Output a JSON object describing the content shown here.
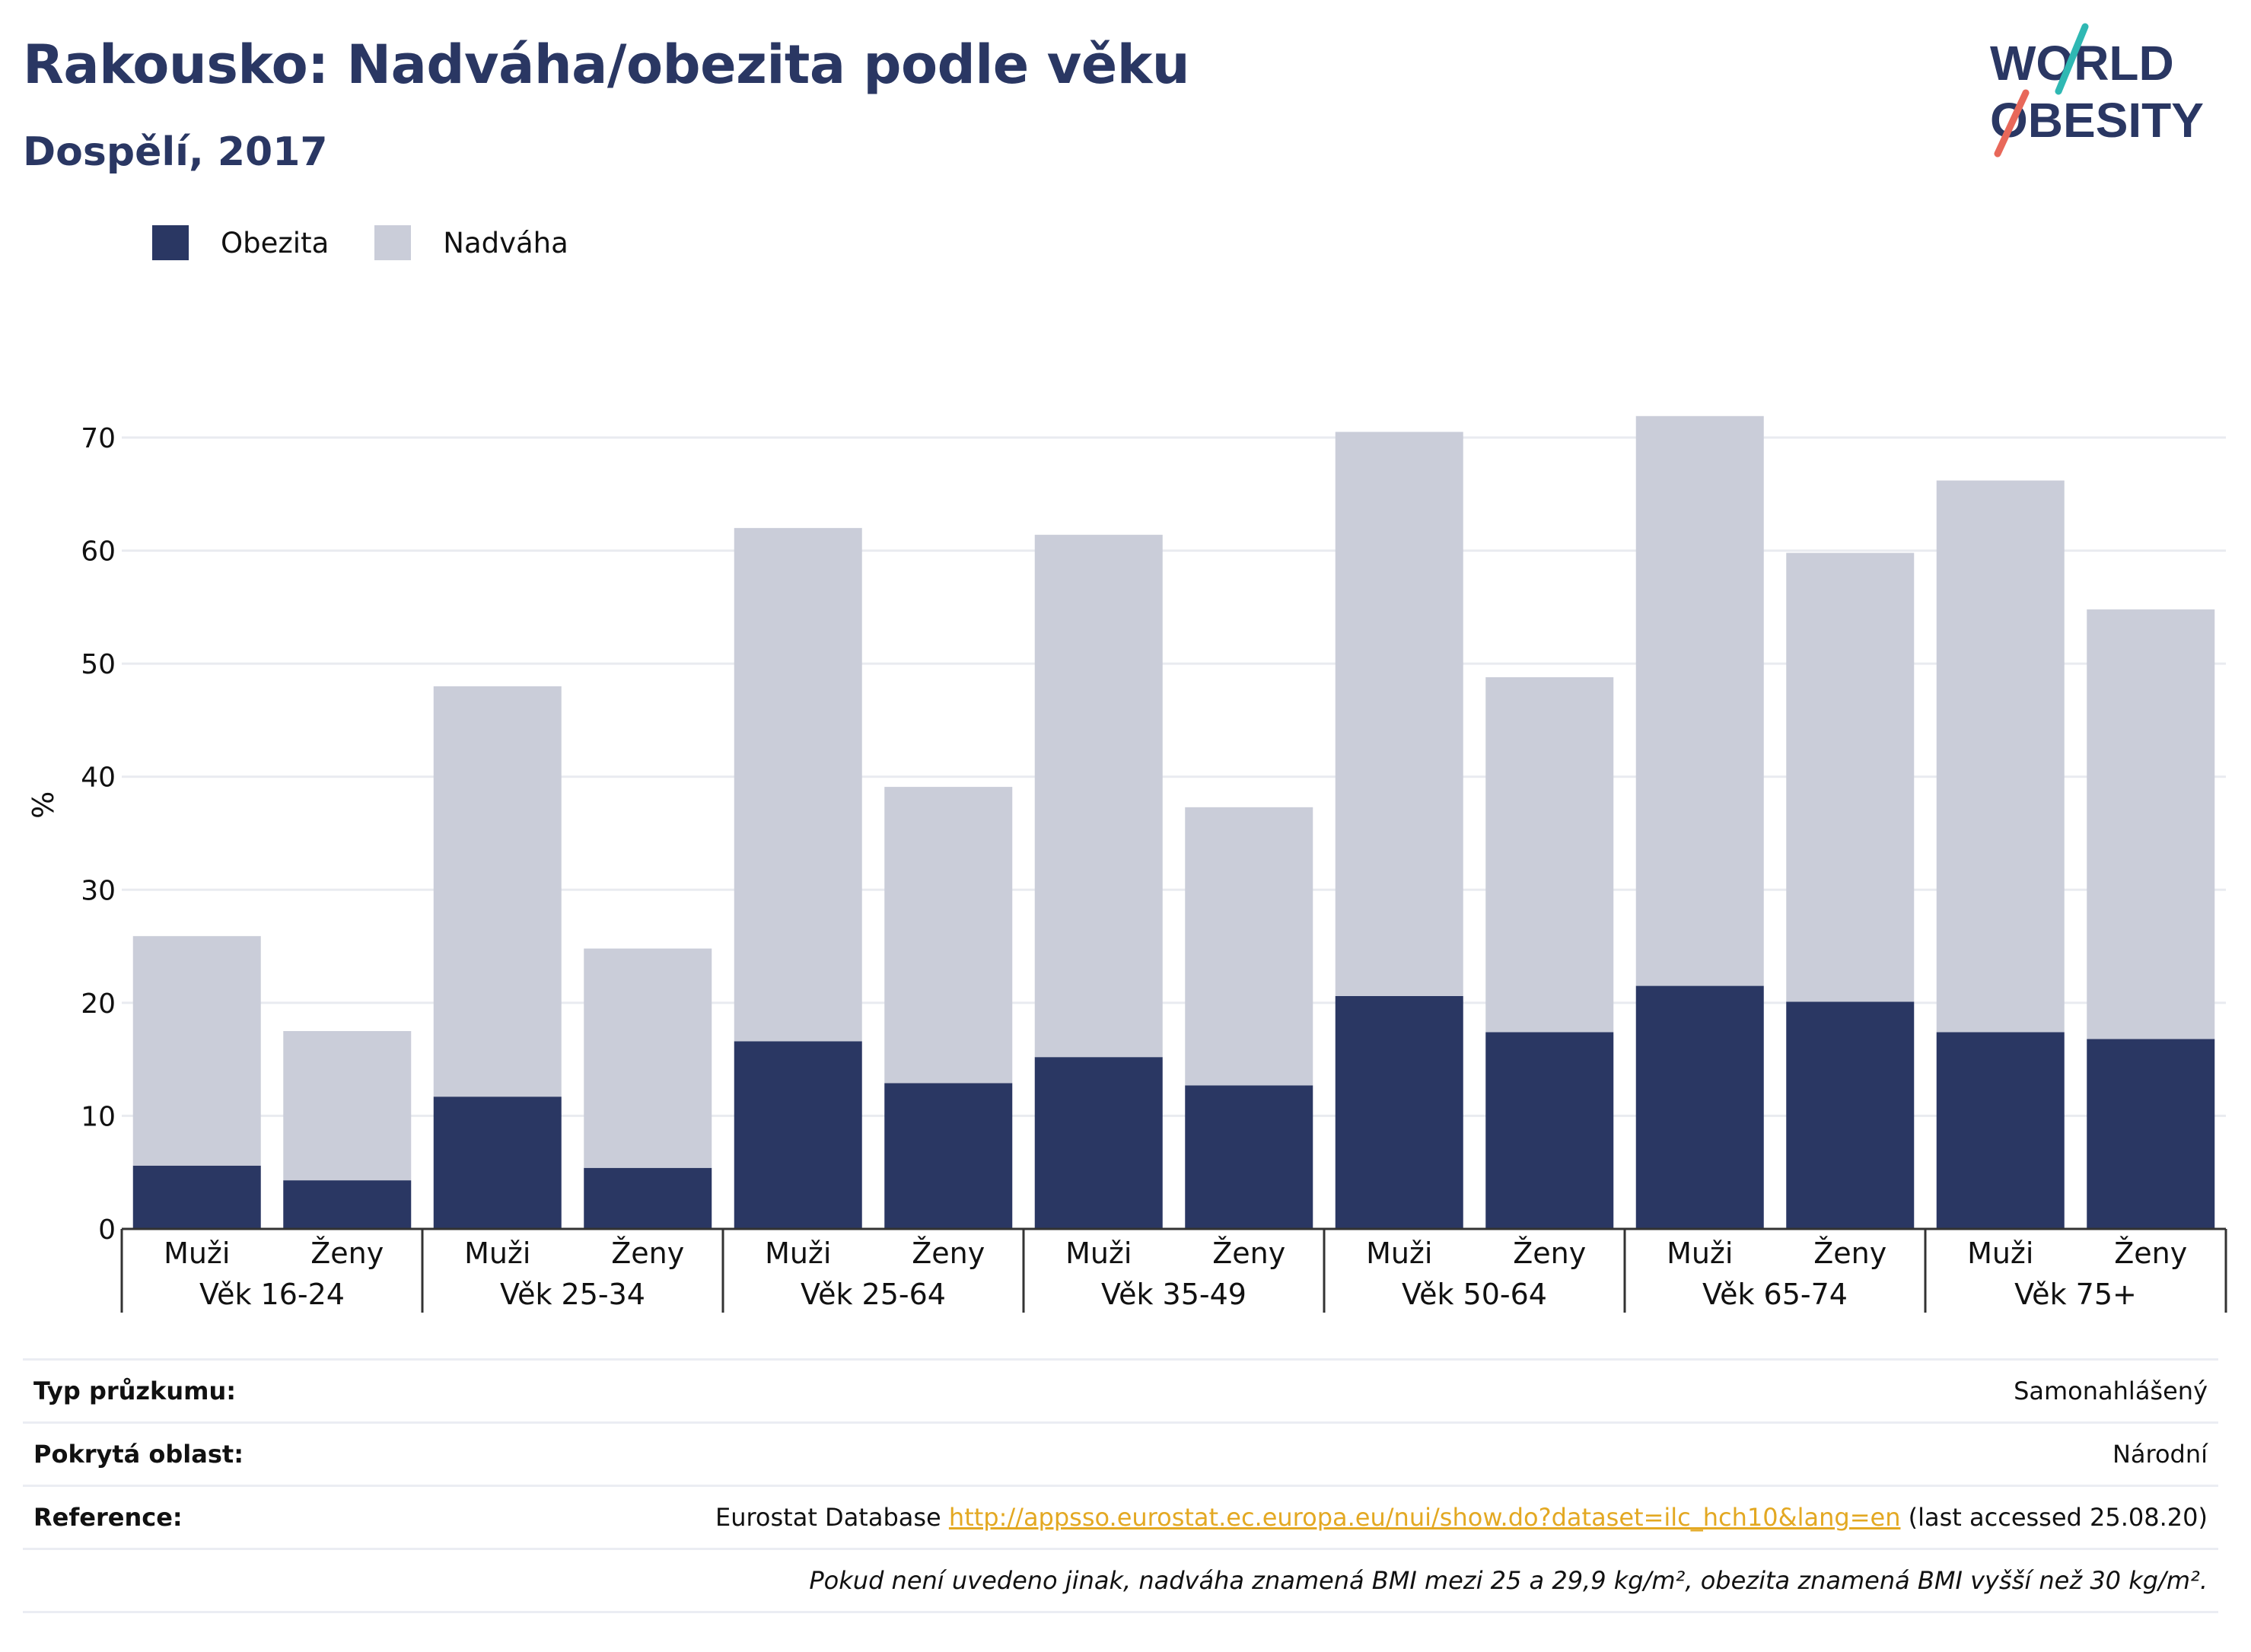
{
  "title": "Rakousko: Nadváha/obezita podle věku",
  "subtitle": "Dospělí, 2017",
  "logo": {
    "line1": "WORLD",
    "line2": "OBESITY"
  },
  "legend": [
    {
      "label": "Obezita",
      "color": "#2a3763"
    },
    {
      "label": "Nadváha",
      "color": "#cacdd9"
    }
  ],
  "chart_data": {
    "type": "bar",
    "stacked": true,
    "ylabel": "%",
    "ylim": [
      0,
      75
    ],
    "yticks": [
      0,
      10,
      20,
      30,
      40,
      50,
      60,
      70
    ],
    "grid": true,
    "legend_position": "top-left",
    "groups": [
      "Věk 16-24",
      "Věk 25-34",
      "Věk 25-64",
      "Věk 35-49",
      "Věk 50-64",
      "Věk 65-74",
      "Věk 75+"
    ],
    "subcategories": [
      "Muži",
      "Ženy"
    ],
    "categories": [
      "Věk 16-24 Muži",
      "Věk 16-24 Ženy",
      "Věk 25-34 Muži",
      "Věk 25-34 Ženy",
      "Věk 25-64 Muži",
      "Věk 25-64 Ženy",
      "Věk 35-49 Muži",
      "Věk 35-49 Ženy",
      "Věk 50-64 Muži",
      "Věk 50-64 Ženy",
      "Věk 65-74 Muži",
      "Věk 65-74 Ženy",
      "Věk 75+ Muži",
      "Věk 75+ Ženy"
    ],
    "series": [
      {
        "name": "Obezita",
        "color": "#2a3763",
        "values": [
          5.6,
          4.3,
          11.7,
          5.4,
          16.6,
          12.9,
          15.2,
          12.7,
          20.6,
          17.4,
          21.5,
          20.1,
          17.4,
          16.8
        ]
      },
      {
        "name": "Nadváha",
        "color": "#cacdd9",
        "values": [
          20.3,
          13.2,
          36.3,
          19.4,
          45.4,
          26.2,
          46.2,
          24.6,
          49.9,
          31.4,
          50.4,
          39.7,
          48.8,
          38.0
        ]
      }
    ]
  },
  "info": {
    "survey_label": "Typ průzkumu:",
    "survey_value": "Samonahlášený",
    "area_label": "Pokrytá oblast:",
    "area_value": "Národní",
    "reference_label": "Reference:",
    "reference_prefix": "Eurostat Database ",
    "reference_link": "http://appsso.eurostat.ec.europa.eu/nui/show.do?dataset=ilc_hch10&lang=en",
    "reference_suffix": " (last accessed 25.08.20)",
    "note": "Pokud není uvedeno jinak, nadváha znamená BMI mezi 25 a 29,9 kg/m², obezita znamená BMI vyšší než 30 kg/m²."
  }
}
